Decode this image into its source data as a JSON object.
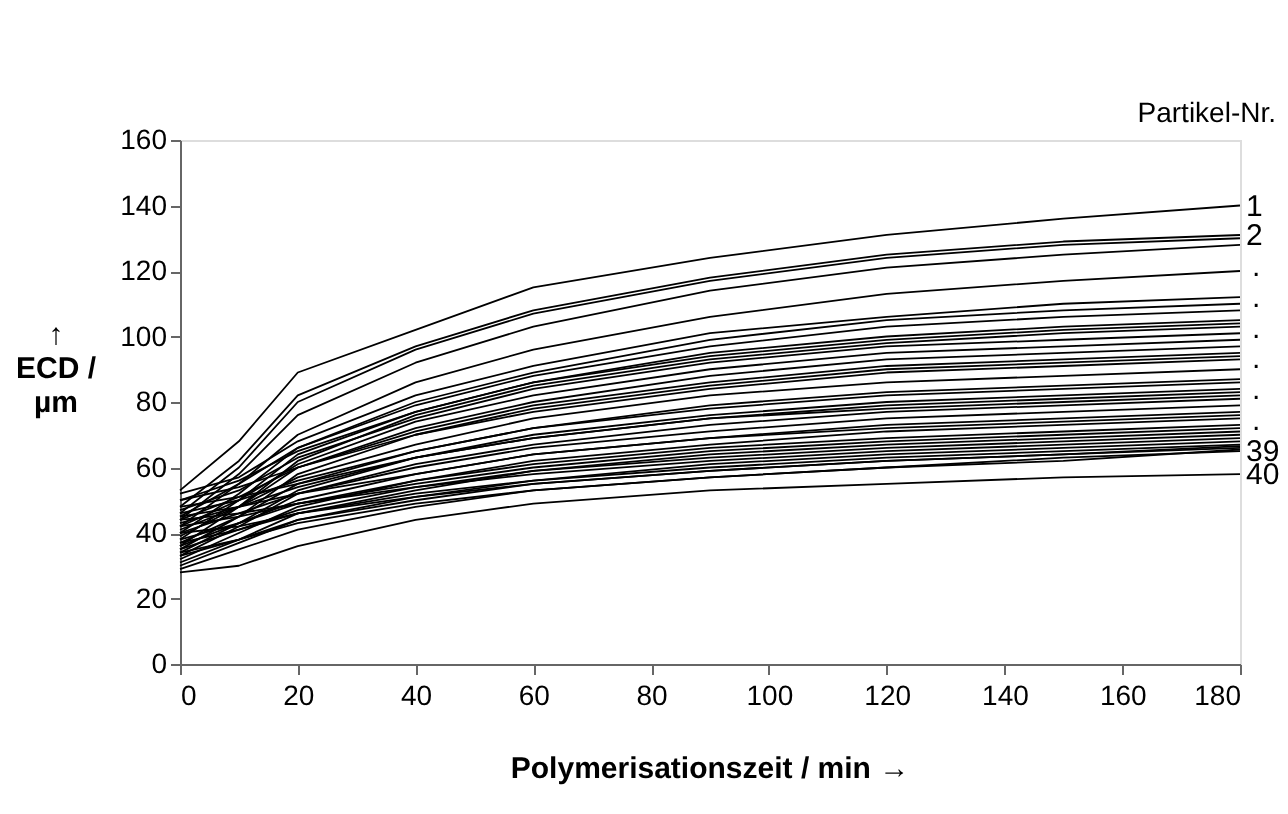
{
  "chart_data": {
    "type": "line",
    "xlabel": "Polymerisationszeit / min →",
    "ylabel": "↑\nECD /\nµm",
    "annotations": [
      "Partikel-Nr.",
      ".",
      ".",
      ".",
      ".",
      ".",
      "."
    ],
    "x": [
      0,
      10,
      20,
      40,
      60,
      90,
      120,
      150,
      180
    ],
    "xlim": [
      0,
      180
    ],
    "xticks": [
      0,
      20,
      40,
      60,
      80,
      100,
      120,
      140,
      160,
      180
    ],
    "ylim": [
      0,
      160
    ],
    "yticks": [
      0,
      20,
      40,
      60,
      80,
      100,
      120,
      140,
      160
    ],
    "grid": false,
    "legend": false,
    "marker": "none",
    "line_style": "solid",
    "series": [
      {
        "name": "1",
        "color": "#000000",
        "values": [
          53,
          68,
          89,
          102,
          115,
          124,
          131,
          136,
          140
        ]
      },
      {
        "name": "2",
        "color": "#000000",
        "values": [
          48,
          62,
          82,
          97,
          108,
          118,
          125,
          129,
          131
        ]
      },
      {
        "color": "#000000",
        "values": [
          46,
          60,
          80,
          96,
          107,
          117,
          124,
          128,
          130
        ]
      },
      {
        "color": "#000000",
        "values": [
          44,
          58,
          76,
          92,
          103,
          114,
          121,
          125,
          128
        ]
      },
      {
        "color": "#000000",
        "values": [
          42,
          55,
          70,
          86,
          96,
          106,
          113,
          117,
          120
        ]
      },
      {
        "color": "#000000",
        "values": [
          52,
          57,
          68,
          82,
          91,
          101,
          106,
          110,
          112
        ]
      },
      {
        "color": "#000000",
        "values": [
          40,
          52,
          66,
          80,
          89,
          99,
          105,
          108,
          110
        ]
      },
      {
        "color": "#000000",
        "values": [
          45,
          55,
          66,
          79,
          88,
          97,
          103,
          106,
          108
        ]
      },
      {
        "color": "#000000",
        "values": [
          38,
          50,
          64,
          77,
          86,
          95,
          100,
          103,
          105
        ]
      },
      {
        "color": "#000000",
        "values": [
          50,
          56,
          65,
          77,
          86,
          94,
          99,
          102,
          104
        ]
      },
      {
        "color": "#000000",
        "values": [
          36,
          48,
          62,
          76,
          85,
          93,
          98,
          101,
          103
        ]
      },
      {
        "color": "#000000",
        "values": [
          47,
          53,
          63,
          75,
          84,
          92,
          97,
          99,
          101
        ]
      },
      {
        "color": "#000000",
        "values": [
          42,
          50,
          61,
          74,
          82,
          90,
          95,
          97,
          99
        ]
      },
      {
        "color": "#000000",
        "values": [
          39,
          48,
          60,
          72,
          80,
          88,
          93,
          95,
          97
        ]
      },
      {
        "color": "#000000",
        "values": [
          44,
          51,
          60,
          71,
          79,
          86,
          91,
          93,
          95
        ]
      },
      {
        "color": "#000000",
        "values": [
          35,
          45,
          58,
          70,
          78,
          85,
          90,
          92,
          94
        ]
      },
      {
        "color": "#000000",
        "values": [
          50,
          54,
          60,
          70,
          77,
          84,
          89,
          91,
          93
        ]
      },
      {
        "color": "#000000",
        "values": [
          41,
          48,
          57,
          67,
          75,
          82,
          86,
          88,
          90
        ]
      },
      {
        "color": "#000000",
        "values": [
          37,
          45,
          55,
          65,
          72,
          79,
          83,
          85,
          87
        ]
      },
      {
        "color": "#000000",
        "values": [
          46,
          50,
          56,
          65,
          72,
          78,
          82,
          84,
          86
        ]
      },
      {
        "color": "#000000",
        "values": [
          34,
          43,
          53,
          63,
          70,
          76,
          80,
          82,
          84
        ]
      },
      {
        "color": "#000000",
        "values": [
          43,
          48,
          54,
          63,
          69,
          75,
          79,
          81,
          83
        ]
      },
      {
        "color": "#000000",
        "values": [
          48,
          51,
          55,
          63,
          69,
          75,
          78,
          80,
          82
        ]
      },
      {
        "color": "#000000",
        "values": [
          33,
          42,
          52,
          61,
          67,
          73,
          77,
          79,
          81
        ]
      },
      {
        "color": "#000000",
        "values": [
          40,
          46,
          52,
          60,
          66,
          71,
          75,
          77,
          79
        ]
      },
      {
        "color": "#000000",
        "values": [
          36,
          43,
          50,
          58,
          64,
          69,
          73,
          75,
          77
        ]
      },
      {
        "color": "#000000",
        "values": [
          45,
          48,
          52,
          58,
          64,
          69,
          72,
          74,
          76
        ]
      },
      {
        "color": "#000000",
        "values": [
          32,
          40,
          48,
          56,
          62,
          67,
          71,
          73,
          75
        ]
      },
      {
        "color": "#000000",
        "values": [
          38,
          43,
          49,
          56,
          61,
          66,
          69,
          71,
          73
        ]
      },
      {
        "color": "#000000",
        "values": [
          42,
          45,
          49,
          55,
          60,
          65,
          68,
          70,
          72
        ]
      },
      {
        "color": "#000000",
        "values": [
          31,
          38,
          46,
          53,
          59,
          64,
          67,
          69,
          71
        ]
      },
      {
        "color": "#000000",
        "values": [
          35,
          41,
          47,
          54,
          59,
          63,
          66,
          68,
          70
        ]
      },
      {
        "color": "#000000",
        "values": [
          44,
          46,
          49,
          54,
          58,
          62,
          65,
          67,
          69
        ]
      },
      {
        "color": "#000000",
        "values": [
          30,
          37,
          44,
          51,
          56,
          61,
          64,
          66,
          68
        ]
      },
      {
        "color": "#000000",
        "values": [
          37,
          41,
          46,
          52,
          56,
          60,
          63,
          65,
          67
        ]
      },
      {
        "color": "#000000",
        "values": [
          33,
          38,
          44,
          50,
          55,
          59,
          62,
          64,
          66.5
        ]
      },
      {
        "color": "#000000",
        "values": [
          40,
          42,
          46,
          51,
          55,
          59,
          62,
          64,
          66
        ]
      },
      {
        "color": "#000000",
        "values": [
          29,
          35,
          41,
          48,
          53,
          57,
          60,
          62,
          65.5
        ]
      },
      {
        "name": "39",
        "color": "#000000",
        "values": [
          34,
          38,
          43,
          49,
          53,
          57,
          60,
          63,
          65
        ]
      },
      {
        "name": "40",
        "color": "#000000",
        "values": [
          28,
          30,
          36,
          44,
          49,
          53,
          55,
          57,
          58
        ]
      }
    ]
  }
}
